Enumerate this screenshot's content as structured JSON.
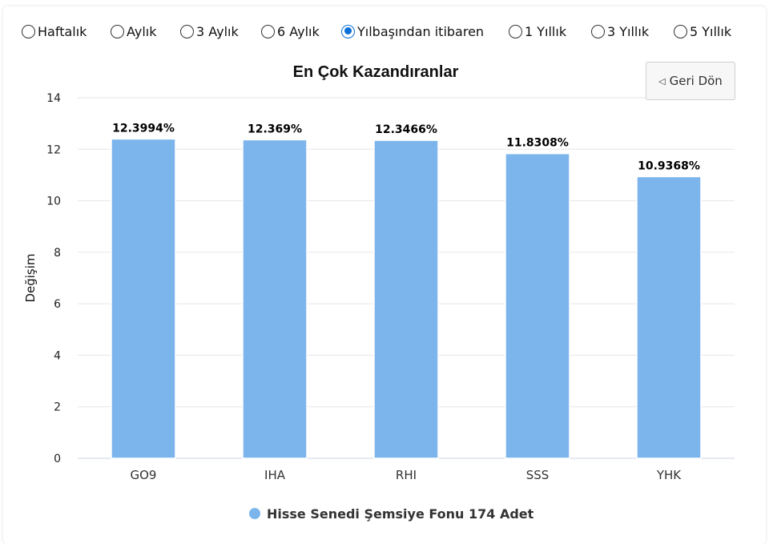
{
  "period_options": [
    {
      "label": "Haftalık",
      "checked": false
    },
    {
      "label": "Aylık",
      "checked": false
    },
    {
      "label": "3 Aylık",
      "checked": false
    },
    {
      "label": "6 Aylık",
      "checked": false
    },
    {
      "label": "Yılbaşından itibaren",
      "checked": true
    },
    {
      "label": "1 Yıllık",
      "checked": false
    },
    {
      "label": "3 Yıllık",
      "checked": false
    },
    {
      "label": "5 Yıllık",
      "checked": false
    }
  ],
  "back_button": {
    "label": "Geri Dön",
    "icon": "triangle-left-icon"
  },
  "chart_data": {
    "type": "bar",
    "title": "En Çok Kazandıranlar",
    "xlabel": "",
    "ylabel": "Değişim",
    "categories": [
      "GO9",
      "IHA",
      "RHI",
      "SSS",
      "YHK"
    ],
    "series": [
      {
        "name": "Hisse Senedi Şemsiye Fonu 174 Adet",
        "values": [
          12.3994,
          12.369,
          12.3466,
          11.8308,
          10.9368
        ],
        "color": "#7cb5ec"
      }
    ],
    "data_labels": [
      "12.3994%",
      "12.369%",
      "12.3466%",
      "11.8308%",
      "10.9368%"
    ],
    "ylim": [
      0,
      14
    ],
    "yticks": [
      0,
      2,
      4,
      6,
      8,
      10,
      12,
      14
    ],
    "grid": true,
    "legend": "bottom-center"
  }
}
